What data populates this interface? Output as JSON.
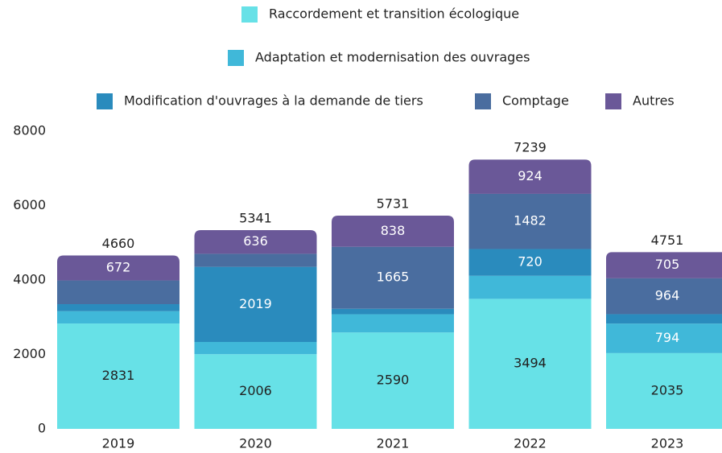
{
  "chart_data": {
    "type": "stacked_bar",
    "categories": [
      "2019",
      "2020",
      "2021",
      "2022",
      "2023"
    ],
    "series": [
      {
        "name": "Raccordement et transition écologique",
        "color": "#67e1e7",
        "values": [
          2831,
          2006,
          2590,
          3494,
          2035
        ],
        "value_labels": [
          "2831",
          "2006",
          "2590",
          "3494",
          "2035"
        ]
      },
      {
        "name": "Adaptation et modernisation des ouvrages",
        "color": "#40b8d9",
        "values": [
          330,
          329,
          490,
          619,
          794
        ],
        "value_labels": [
          null,
          null,
          null,
          null,
          "794"
        ]
      },
      {
        "name": "Modification d'ouvrages à la demande de tiers",
        "color": "#2a8bbd",
        "values": [
          190,
          2019,
          148,
          720,
          253
        ],
        "value_labels": [
          null,
          "2019",
          null,
          "720",
          null
        ]
      },
      {
        "name": "Comptage",
        "color": "#4a6d9f",
        "values": [
          637,
          351,
          1665,
          1482,
          964
        ],
        "value_labels": [
          null,
          null,
          "1665",
          "1482",
          "964"
        ]
      },
      {
        "name": "Autres",
        "color": "#6a5898",
        "values": [
          672,
          636,
          838,
          924,
          705
        ],
        "value_labels": [
          "672",
          "636",
          "838",
          "924",
          "705"
        ]
      }
    ],
    "totals": [
      4660,
      5341,
      5731,
      7239,
      4751
    ],
    "ylim": [
      0,
      8000
    ],
    "yticks": [
      0,
      2000,
      4000,
      6000,
      8000
    ]
  }
}
